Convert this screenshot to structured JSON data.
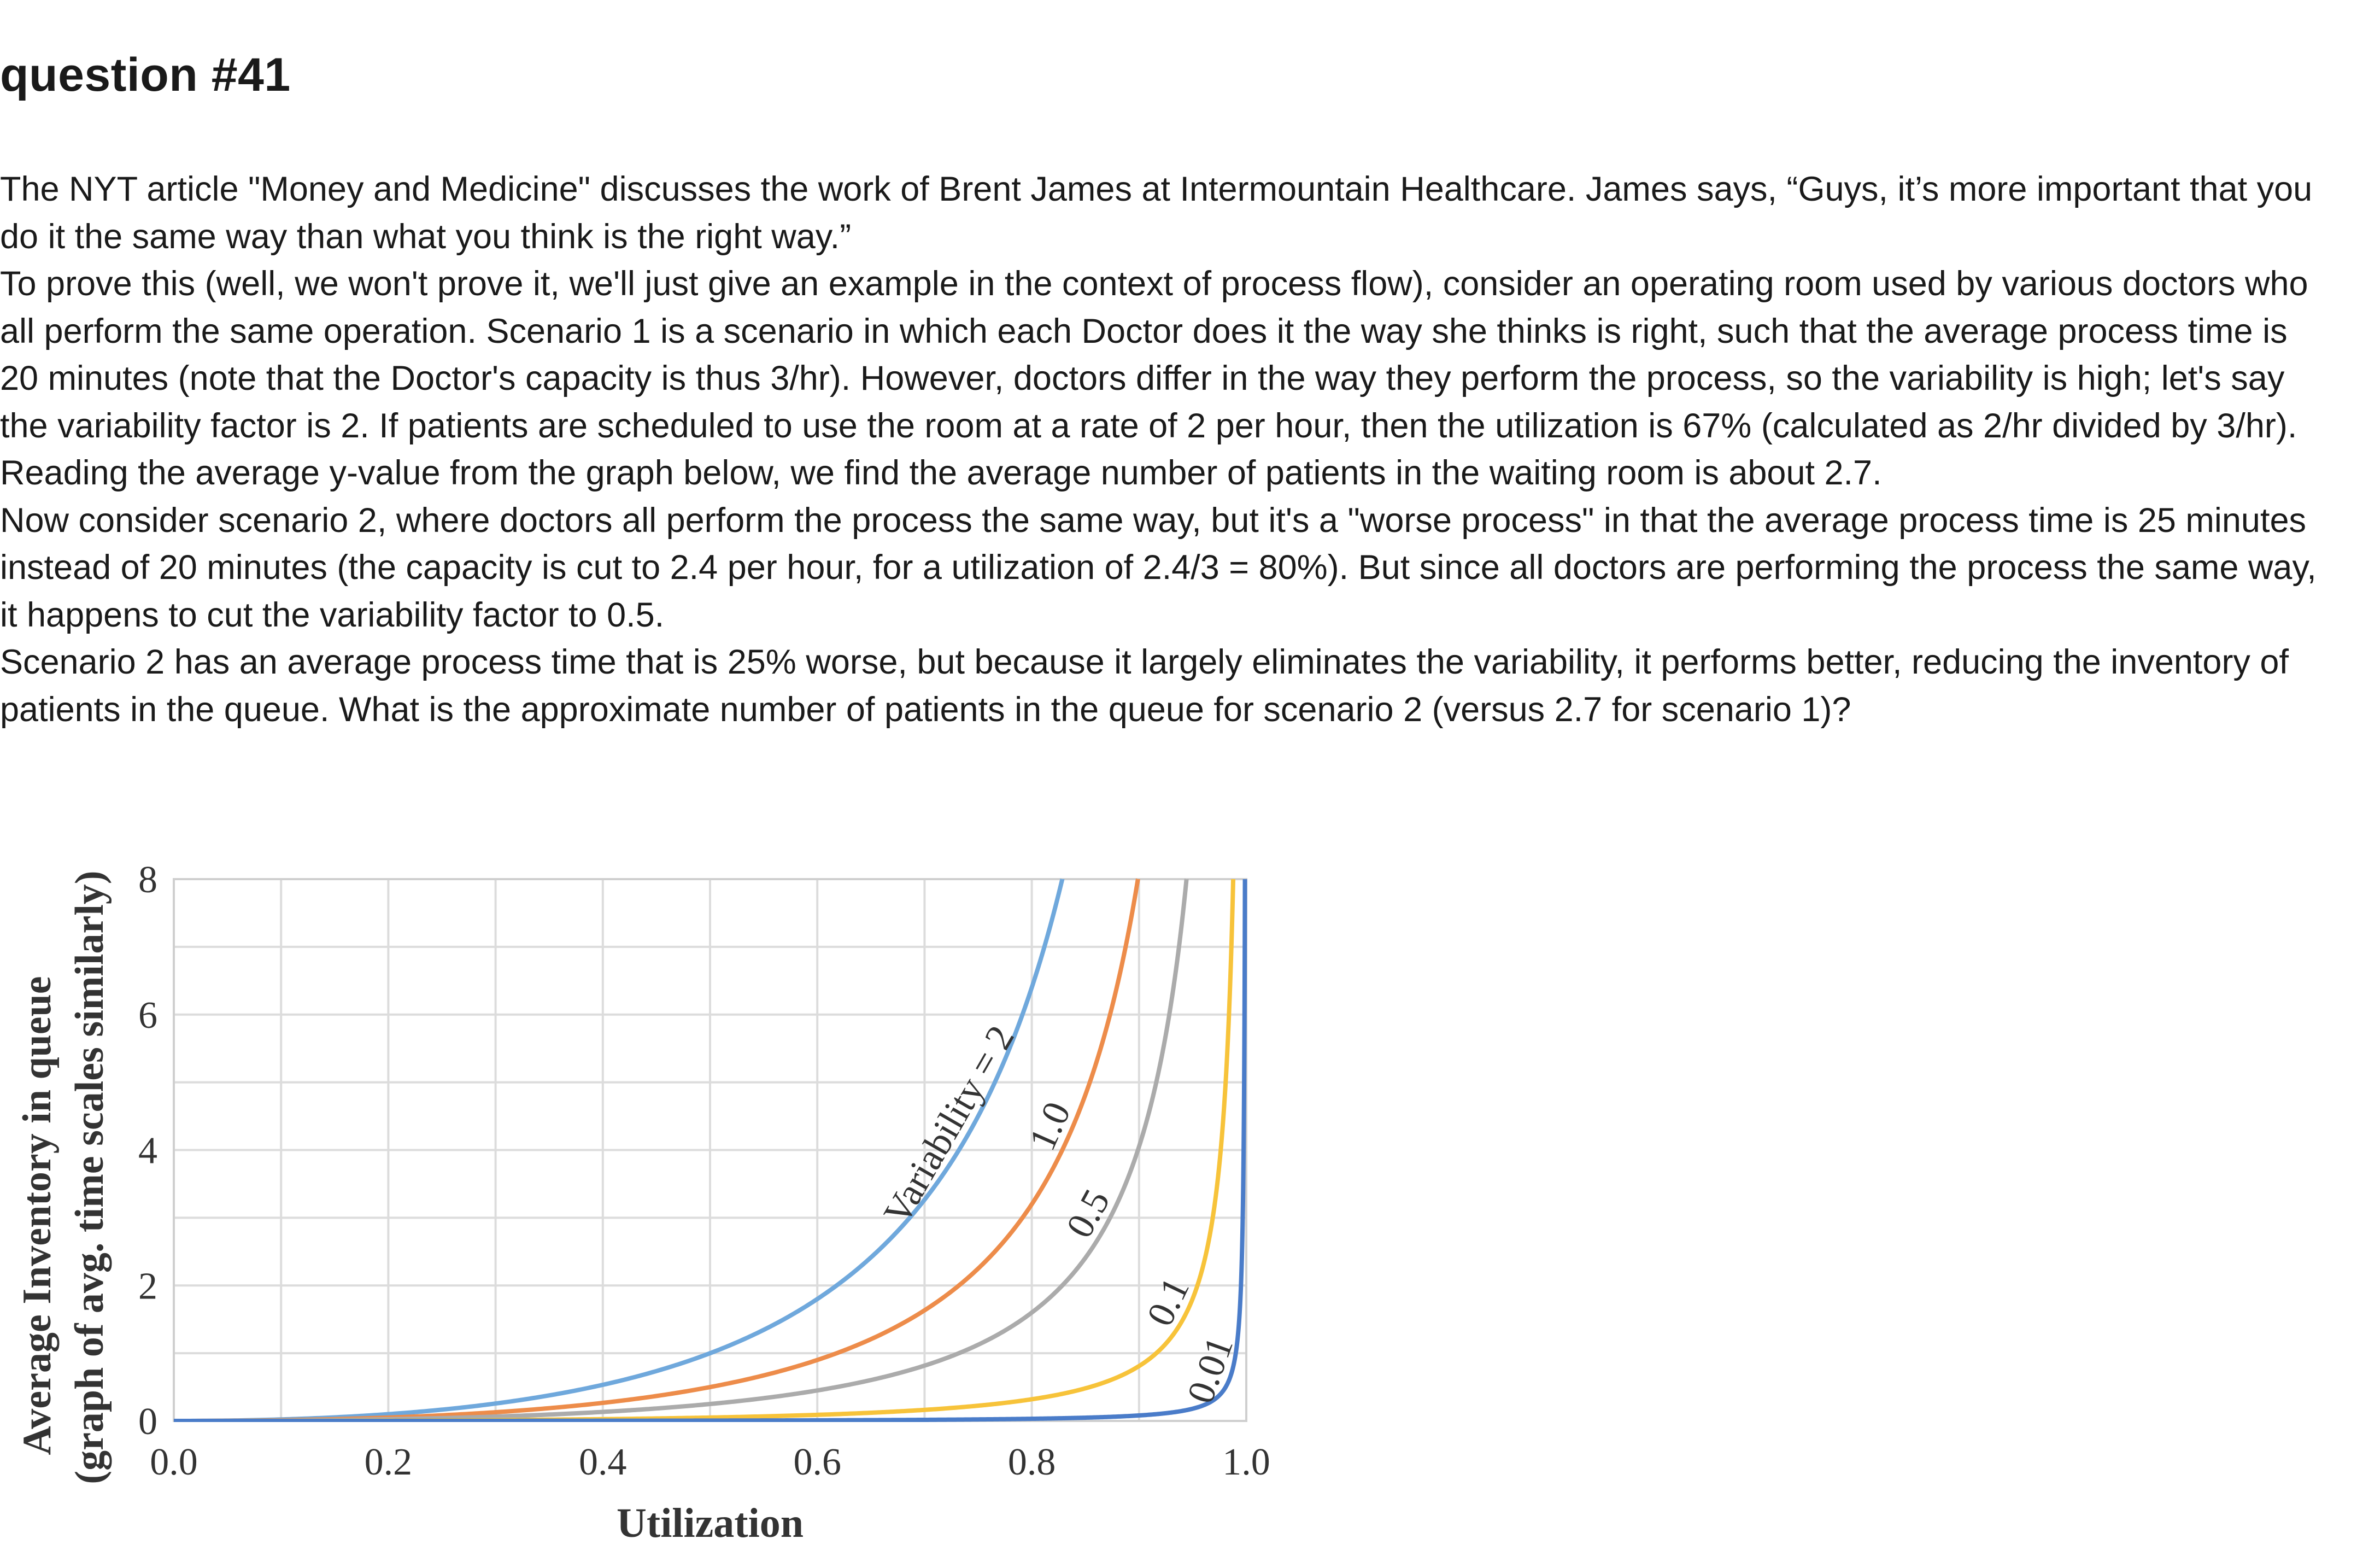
{
  "page_title": "question #41",
  "paragraphs": [
    "The NYT article \"Money and Medicine\" discusses the work of Brent James at Intermountain Healthcare. James says, “Guys, it’s more important that you do it the same way than what you think is the right way.”",
    "To prove this (well, we won't prove it, we'll just give an example in the context of process flow), consider an operating room used by various doctors who all perform the same operation. Scenario 1 is a scenario in which each Doctor does it the way she thinks is right, such that the average process time is 20 minutes (note that the Doctor's capacity is thus 3/hr). However, doctors differ in the way they perform the process, so the variability is high; let's say the variability factor is 2. If patients are scheduled to use the room at a rate of 2 per hour, then the utilization is 67% (calculated as 2/hr divided by 3/hr). Reading the average y-value from the graph below, we find the average number of patients in the waiting room is about 2.7.",
    "Now consider scenario 2, where doctors all perform the process the same way, but it's a \"worse process\" in that the average process time is 25 minutes instead of 20 minutes (the capacity is cut to 2.4 per hour, for a utilization of 2.4/3 = 80%). But since all doctors are performing the process the same way, it happens to cut the variability factor to 0.5.",
    "Scenario 2 has an average process time that is 25% worse, but because it largely eliminates the variability, it performs better, reducing the inventory of patients in the queue. What is the approximate number of patients in the queue for scenario 2 (versus 2.7 for scenario 1)?"
  ],
  "chart_data": {
    "type": "line",
    "title": "",
    "xlabel": "Utilization",
    "ylabel": "Average Inventory in queue",
    "ylabel2": "(graph of avg. time scales similarly)",
    "xlim": [
      0,
      1
    ],
    "ylim": [
      0,
      8
    ],
    "x_ticks": [
      0,
      0.2,
      0.4,
      0.6,
      0.8,
      1.0
    ],
    "x_tick_labels": [
      "0.0",
      "0.2",
      "0.4",
      "0.6",
      "0.8",
      "1.0"
    ],
    "y_ticks": [
      0,
      2,
      4,
      6,
      8
    ],
    "y_tick_labels": [
      "0",
      "2",
      "4",
      "6",
      "8"
    ],
    "grid": true,
    "model": "variability * u^2 / (1 - u)",
    "series": [
      {
        "name": "Variability = 2",
        "variability": 2,
        "color": "#6fa8dc",
        "label_u": 0.74
      },
      {
        "name": "1.0",
        "variability": 1.0,
        "color": "#ed8c4a",
        "label_u": 0.835
      },
      {
        "name": "0.5",
        "variability": 0.5,
        "color": "#ababab",
        "label_u": 0.87
      },
      {
        "name": "0.1",
        "variability": 0.1,
        "color": "#f7c33a",
        "label_u": 0.945
      },
      {
        "name": "0.01",
        "variability": 0.01,
        "color": "#4a7cc9",
        "label_u": 0.985
      }
    ]
  }
}
